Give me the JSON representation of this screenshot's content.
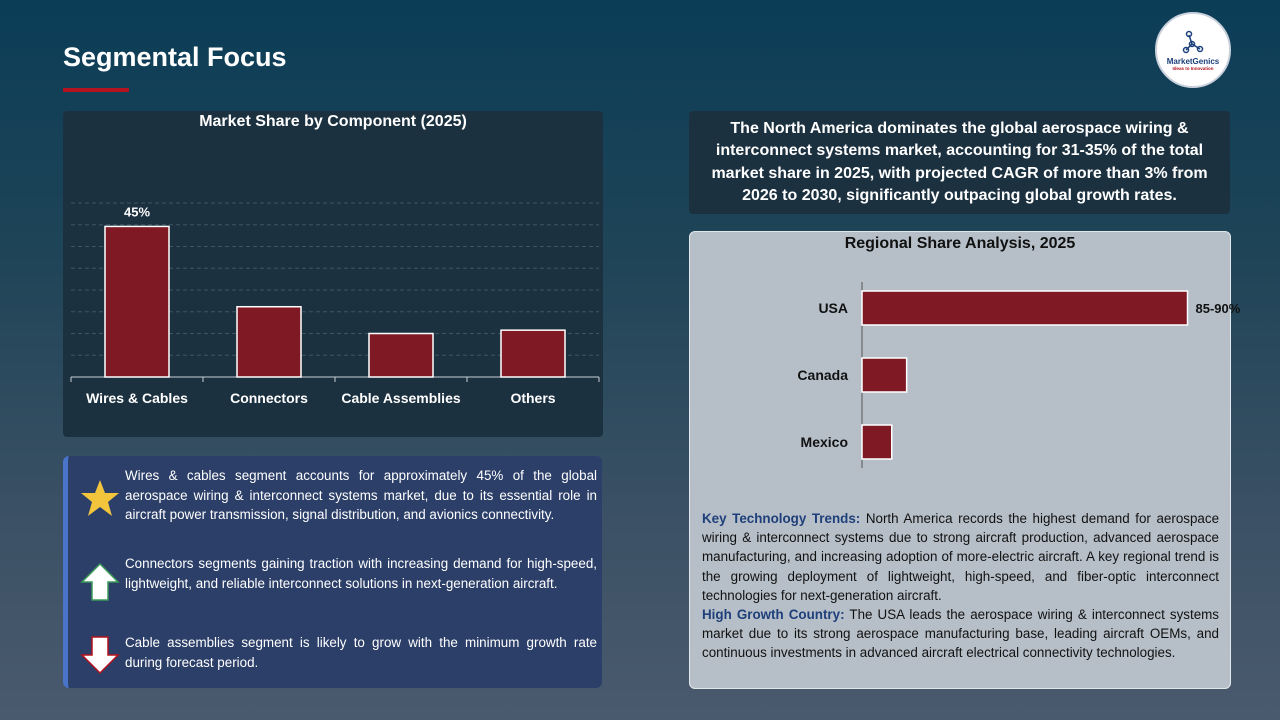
{
  "header": {
    "title": "Segmental Focus",
    "logo_brand": "MarketGenics",
    "logo_tagline": "Ideas to Innovation",
    "accent_color": "#b3121f"
  },
  "chart_data": [
    {
      "type": "bar",
      "title": "Market Share by Component (2025)",
      "categories": [
        "Wires & Cables",
        "Connectors",
        "Cable Assemblies",
        "Others"
      ],
      "values": [
        45,
        21,
        13,
        14
      ],
      "data_labels": [
        "45%",
        "",
        "",
        ""
      ],
      "ylim": [
        0,
        52
      ],
      "grid": true,
      "bar_color": "#7f1a24"
    },
    {
      "type": "bar",
      "orientation": "horizontal",
      "title": "Regional Share Analysis, 2025",
      "categories": [
        "USA",
        "Canada",
        "Mexico"
      ],
      "values": [
        87.5,
        12,
        8
      ],
      "data_labels": [
        "85-90%",
        "",
        ""
      ],
      "xlim": [
        0,
        100
      ],
      "bar_color": "#7f1a24"
    }
  ],
  "summary": {
    "items": [
      {
        "icon": "star-icon",
        "text": "Wires & cables segment accounts for approximately 45% of the global aerospace wiring & interconnect systems market, due to its essential role in aircraft power transmission, signal distribution, and avionics connectivity."
      },
      {
        "icon": "arrow-up-icon",
        "text": "Connectors segments gaining traction with increasing demand for high-speed, lightweight, and reliable interconnect solutions in next-generation aircraft."
      },
      {
        "icon": "arrow-down-icon",
        "text": "Cable assemblies segment is likely to grow with the minimum growth rate during forecast period."
      }
    ]
  },
  "callout": {
    "text": "The North America dominates the global aerospace wiring & interconnect systems market, accounting for 31-35% of the total market share in 2025, with projected CAGR of more than 3% from 2026 to 2030, significantly outpacing global growth rates."
  },
  "regional": {
    "trends_label": "Key Technology Trends:",
    "trends_text": " North America records the highest demand for aerospace wiring & interconnect systems due to strong aircraft production, advanced aerospace manufacturing, and increasing adoption of more-electric aircraft. A key regional trend is the growing deployment of lightweight, high-speed, and fiber-optic interconnect technologies for next-generation aircraft.",
    "country_label": "High Growth Country:",
    "country_text": " The USA leads the aerospace wiring & interconnect systems market due to its strong aerospace manufacturing base, leading aircraft OEMs, and continuous investments in advanced aircraft electrical connectivity technologies."
  }
}
